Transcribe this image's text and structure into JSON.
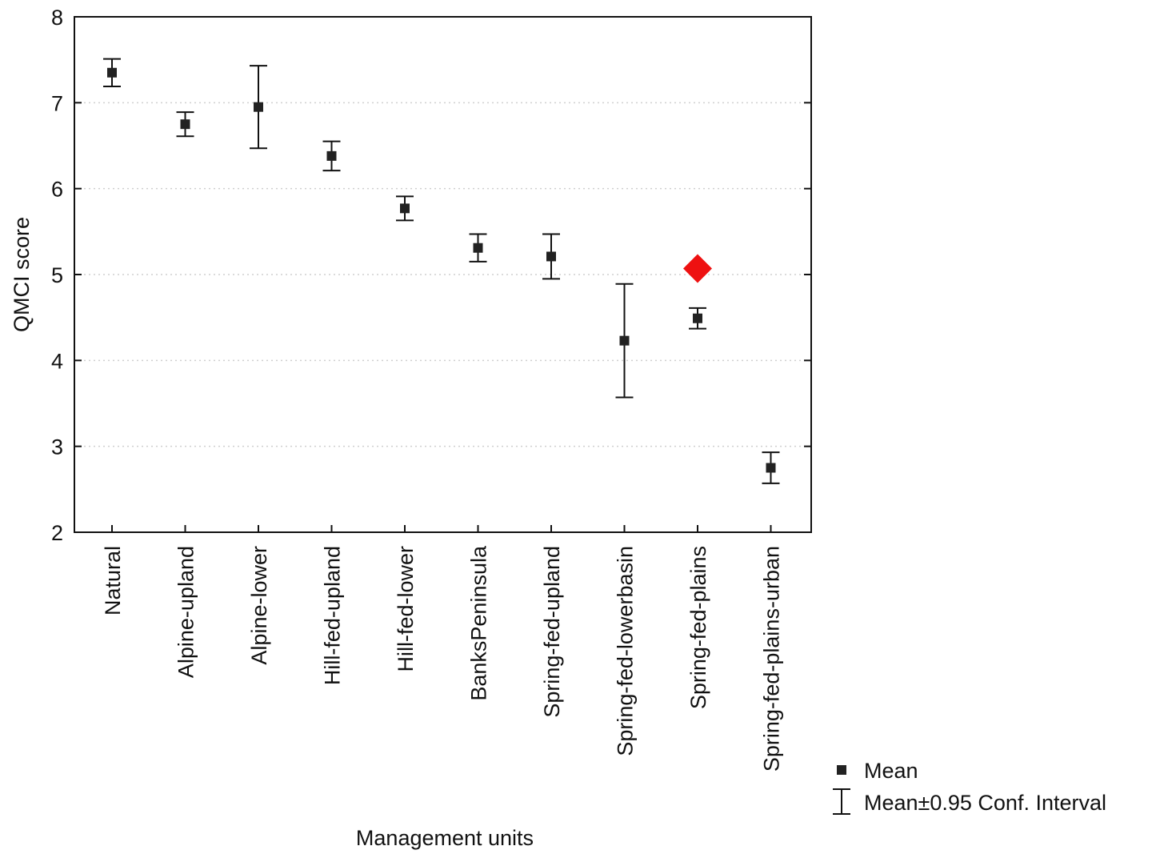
{
  "chart_data": {
    "type": "scatter",
    "title": "",
    "xlabel": "Management units",
    "ylabel": "QMCI score",
    "ylim": [
      2,
      8
    ],
    "yticks": [
      2,
      3,
      4,
      5,
      6,
      7,
      8
    ],
    "grid": "horizontal dotted",
    "categories": [
      "Natural",
      "Alpine-upland",
      "Alpine-lower",
      "Hill-fed-upland",
      "Hill-fed-lower",
      "BanksPeninsula",
      "Spring-fed-upland",
      "Spring-fed-lowerbasin",
      "Spring-fed-plains",
      "Spring-fed-plains-urban"
    ],
    "series": [
      {
        "name": "Mean",
        "values": [
          7.35,
          6.75,
          6.95,
          6.38,
          5.77,
          5.31,
          5.21,
          4.23,
          4.49,
          2.75
        ],
        "ci_low": [
          7.19,
          6.61,
          6.47,
          6.21,
          5.63,
          5.15,
          4.95,
          3.57,
          4.37,
          2.57
        ],
        "ci_high": [
          7.51,
          6.89,
          7.43,
          6.55,
          5.91,
          5.47,
          5.47,
          4.89,
          4.61,
          2.93
        ],
        "color": "#222222"
      }
    ],
    "highlight": {
      "category": "Spring-fed-plains",
      "value": 5.07,
      "marker": "diamond",
      "color": "#ee1111"
    },
    "legend": {
      "placement": "bottom-right",
      "items": [
        {
          "label": "Mean",
          "symbol": "square"
        },
        {
          "label": "Mean±0.95 Conf. Interval",
          "symbol": "whisker"
        }
      ]
    }
  }
}
